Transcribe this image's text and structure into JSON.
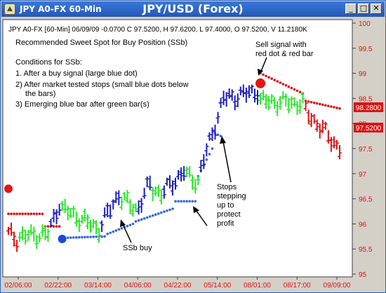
{
  "window": {
    "app_title": "JPY A0-FX 60-Min",
    "center_title": "JPY/USD (Forex)",
    "minimize_glyph": "_",
    "maximize_glyph": "□",
    "close_glyph": "✕",
    "icon": "chart-app-icon"
  },
  "header_text": "JPY A0-FX [60-Min] 06/09/09 -0.0700 C 97.5200, H 97.6200, L 97.4000, O 97.5200, V 11.2180K",
  "annotations": {
    "heading": "Recommended Sweet Spot for Buy Position (SSb)",
    "conditions_title": "Conditions for SSb:",
    "cond1": "1. After a buy signal (large blue dot)",
    "cond2a": "2) After market tested stops (small blue dots below",
    "cond2b": "the bars)",
    "cond3": "3) Emerging blue bar after green bar(s)",
    "sell_line1": "Sell signal with",
    "sell_line2": "red dot & red bar",
    "stops_line1": "Stops",
    "stops_line2": "stepping",
    "stops_line3": "up to",
    "stops_line4": "protect",
    "stops_line5": "profit",
    "ssb_buy": "SSb buy"
  },
  "price_labels": {
    "current_red": "98.2800",
    "current_close": "97.5200"
  },
  "colors": {
    "title_bar": "#2a64c8",
    "up_bar": "#1e1ebe",
    "neutral_bar": "#28e628",
    "sell_bar": "#dc1414",
    "buy_dot": "#1e46dc",
    "sell_dot": "#e61414",
    "stop_dot_blue": "#3264e6",
    "stop_dot_red": "#dc1414",
    "axis_text": "#dc1414"
  },
  "chart_data": {
    "type": "ohlc",
    "ylim": [
      95,
      100
    ],
    "yticks": [
      95,
      95.5,
      96,
      96.5,
      97,
      97.5,
      98,
      98.5,
      99,
      99.5,
      100
    ],
    "x_tick_labels": [
      "02/06:00",
      "02/22:00",
      "03/14:00",
      "04/06:00",
      "04/22:00",
      "05/14:00",
      "08/01:00",
      "08/17:00",
      "09/09:00"
    ],
    "grid": false,
    "bar_count": 118,
    "bar_segments": [
      {
        "from": 0,
        "to": 3,
        "color": "sell",
        "start_mid": 95.8,
        "end_mid": 95.7
      },
      {
        "from": 4,
        "to": 14,
        "color": "neutral",
        "start_mid": 95.75,
        "end_mid": 95.8
      },
      {
        "from": 15,
        "to": 18,
        "color": "up",
        "start_mid": 95.95,
        "end_mid": 96.4
      },
      {
        "from": 19,
        "to": 32,
        "color": "neutral",
        "start_mid": 96.3,
        "end_mid": 95.9
      },
      {
        "from": 33,
        "to": 39,
        "color": "up",
        "start_mid": 96.0,
        "end_mid": 96.6
      },
      {
        "from": 40,
        "to": 45,
        "color": "neutral",
        "start_mid": 96.5,
        "end_mid": 96.3
      },
      {
        "from": 46,
        "to": 50,
        "color": "up",
        "start_mid": 96.35,
        "end_mid": 96.8
      },
      {
        "from": 51,
        "to": 54,
        "color": "neutral",
        "start_mid": 96.7,
        "end_mid": 96.6
      },
      {
        "from": 55,
        "to": 62,
        "color": "up",
        "start_mid": 96.65,
        "end_mid": 97.05
      },
      {
        "from": 63,
        "to": 67,
        "color": "neutral",
        "start_mid": 96.95,
        "end_mid": 96.85
      },
      {
        "from": 68,
        "to": 76,
        "color": "up",
        "start_mid": 97.1,
        "end_mid": 98.5
      },
      {
        "from": 77,
        "to": 88,
        "color": "up",
        "start_mid": 98.5,
        "end_mid": 98.65
      },
      {
        "from": 89,
        "to": 104,
        "color": "neutral",
        "start_mid": 98.45,
        "end_mid": 98.4
      },
      {
        "from": 105,
        "to": 117,
        "color": "sell",
        "start_mid": 98.25,
        "end_mid": 97.5
      }
    ],
    "buy_signal": {
      "bar": 19,
      "price": 95.7
    },
    "sell_signal": {
      "bar": 89,
      "price": 98.8
    },
    "first_sell_dot": {
      "bar": 0,
      "price": 96.7
    },
    "stops_blue": [
      {
        "from": 19,
        "to": 34,
        "price_start": 95.72,
        "price_end": 95.75
      },
      {
        "from": 35,
        "to": 44,
        "price_start": 95.8,
        "price_end": 96.0
      },
      {
        "from": 45,
        "to": 58,
        "price_start": 96.05,
        "price_end": 96.3
      },
      {
        "from": 59,
        "to": 66,
        "price_start": 96.45,
        "price_end": 96.45
      },
      {
        "from": 67,
        "to": 72,
        "price_start": 96.95,
        "price_end": 97.5
      },
      {
        "from": 73,
        "to": 75,
        "price_start": 97.8,
        "price_end": 97.75
      }
    ],
    "stops_red": [
      {
        "from": 0,
        "to": 12,
        "price_start": 96.2,
        "price_end": 96.2
      },
      {
        "from": 13,
        "to": 18,
        "price_start": 95.95,
        "price_end": 95.95
      },
      {
        "from": 89,
        "to": 104,
        "price_start": 99.0,
        "price_end": 98.6
      },
      {
        "from": 105,
        "to": 117,
        "price_start": 98.45,
        "price_end": 98.3
      }
    ]
  }
}
